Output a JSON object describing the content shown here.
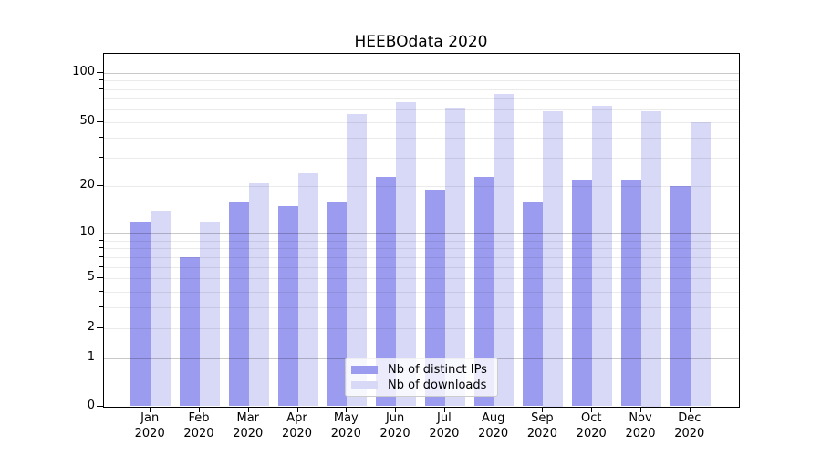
{
  "title": "HEEBOdata 2020",
  "chart_data": {
    "type": "bar",
    "title": "HEEBOdata 2020",
    "xlabel": "",
    "ylabel": "",
    "categories": [
      "Jan 2020",
      "Feb 2020",
      "Mar 2020",
      "Apr 2020",
      "May 2020",
      "Jun 2020",
      "Jul 2020",
      "Aug 2020",
      "Sep 2020",
      "Oct 2020",
      "Nov 2020",
      "Dec 2020"
    ],
    "series": [
      {
        "name": "Nb of distinct IPs",
        "color": "#9b9bef",
        "values": [
          12,
          7,
          16,
          15,
          16,
          23,
          19,
          23,
          16,
          22,
          22,
          20
        ]
      },
      {
        "name": "Nb of downloads",
        "color": "#d8d8f7",
        "values": [
          14,
          12,
          21,
          24,
          56,
          66,
          61,
          75,
          58,
          63,
          58,
          50
        ]
      }
    ],
    "y_scale": "symlog",
    "y_ticks": [
      0,
      1,
      2,
      5,
      10,
      20,
      50,
      100
    ],
    "ylim": [
      0,
      120
    ],
    "grid": true,
    "legend_position": "lower center"
  },
  "legend": {
    "item1": "Nb of distinct IPs",
    "item2": "Nb of downloads"
  }
}
